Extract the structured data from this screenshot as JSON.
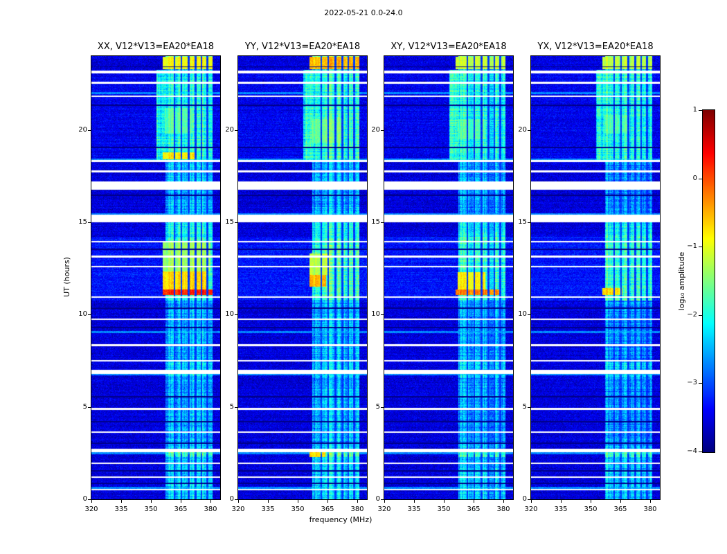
{
  "figure": {
    "title": "2022-05-21 0.0-24.0",
    "xlabel": "frequency (MHz)",
    "ylabel": "UT (hours)",
    "colorbar_label": "log₁₀ amplitude"
  },
  "chart_data": {
    "type": "heatmap",
    "title": "2022-05-21 0.0-24.0",
    "colormap": "jet",
    "x_axis": {
      "label": "frequency (MHz)",
      "range": [
        320,
        385
      ],
      "ticks": [
        "320",
        "335",
        "350",
        "365",
        "380"
      ]
    },
    "y_axis": {
      "label": "UT (hours)",
      "range": [
        0,
        24
      ],
      "ticks": [
        "0",
        "5",
        "10",
        "15",
        "20"
      ]
    },
    "colorbar": {
      "label": "log₁₀ amplitude",
      "range": [
        -4,
        1
      ],
      "ticks": [
        "1",
        "0",
        "−1",
        "−2",
        "−3",
        "−4"
      ]
    },
    "background_level": -3.55,
    "rfi_band": {
      "f0": 357.5,
      "f1": 381.2
    },
    "bg_windows": [
      {
        "t0": 10.75,
        "t1": 14.2,
        "level": -3.3
      },
      {
        "t0": 18.35,
        "t1": 23.3,
        "level": -3.45
      }
    ],
    "band_windows": [
      {
        "t0": 10.75,
        "t1": 14.2,
        "level": -1.9
      },
      {
        "t0": 18.35,
        "t1": 23.25,
        "level": -2.0,
        "f0": 353
      },
      {
        "t0": 23.3,
        "t1": 24,
        "level": -1.6
      },
      {
        "t0": 0,
        "t1": 2.9,
        "level": -2.35
      },
      {
        "t0": 2.3,
        "t1": 2.55,
        "level": -1.8
      },
      {
        "t0": 6.6,
        "t1": 7.4,
        "level": -2.3
      },
      {
        "t0": 14.2,
        "t1": 15.0,
        "level": -2.1
      }
    ],
    "time_gaps": [
      [
        23.05,
        23.2
      ],
      [
        22.5,
        22.62
      ],
      [
        21.78,
        21.86
      ],
      [
        18.25,
        18.38
      ],
      [
        17.7,
        17.8
      ],
      [
        16.75,
        17.2
      ],
      [
        15.0,
        15.42
      ],
      [
        13.9,
        14.0
      ],
      [
        13.1,
        13.2
      ],
      [
        12.55,
        12.63
      ],
      [
        10.9,
        11.0
      ],
      [
        9.7,
        9.8
      ],
      [
        8.3,
        8.4
      ],
      [
        7.45,
        7.53
      ],
      [
        6.8,
        7.0
      ],
      [
        4.85,
        4.95
      ],
      [
        3.6,
        3.68
      ],
      [
        2.55,
        2.72
      ],
      [
        1.9,
        1.97
      ],
      [
        1.15,
        1.22
      ],
      [
        0.5,
        0.57
      ]
    ],
    "dark_rows": [
      23.42,
      21.35,
      19.05,
      16.45,
      13.55,
      10.35,
      9.3,
      5.55,
      4.2,
      3.05,
      1.55,
      0.85
    ],
    "bright_rows": [
      22.0,
      18.42,
      15.45,
      9.05,
      6.76,
      2.5,
      0.62
    ],
    "dark_channels": [
      362,
      365.5,
      369,
      372.5,
      375.5,
      378.5
    ],
    "panels": [
      {
        "title": "XX, V12*V13=EA20*EA18",
        "band_level": -2.5,
        "hotspots": [
          {
            "t0": 11.05,
            "t1": 11.35,
            "f0": 356,
            "f1": 381,
            "level": 0.2
          },
          {
            "t0": 11.35,
            "t1": 12.35,
            "f0": 356,
            "f1": 379,
            "level": -0.7
          },
          {
            "t0": 12.35,
            "t1": 13.9,
            "f0": 356,
            "f1": 380,
            "level": -1.35
          },
          {
            "t0": 18.42,
            "t1": 18.8,
            "f0": 356,
            "f1": 373,
            "level": -0.8
          },
          {
            "t0": 19.8,
            "t1": 21.2,
            "f0": 357,
            "f1": 371,
            "level": -1.7
          },
          {
            "t0": 23.3,
            "t1": 23.97,
            "f0": 356,
            "f1": 381,
            "level": -0.9
          }
        ]
      },
      {
        "title": "YY, V12*V13=EA20*EA18",
        "band_level": -2.5,
        "hotspots": [
          {
            "t0": 11.5,
            "t1": 12.15,
            "f0": 356,
            "f1": 364.5,
            "level": -0.5
          },
          {
            "t0": 12.15,
            "t1": 13.3,
            "f0": 356,
            "f1": 366,
            "level": -1.2
          },
          {
            "t0": 2.3,
            "t1": 2.55,
            "f0": 356,
            "f1": 364,
            "level": -0.7
          },
          {
            "t0": 19.3,
            "t1": 20.6,
            "f0": 357,
            "f1": 372,
            "level": -1.6
          },
          {
            "t0": 23.3,
            "t1": 23.97,
            "f0": 356,
            "f1": 381,
            "level": -0.55
          }
        ]
      },
      {
        "title": "XY, V12*V13=EA20*EA18",
        "band_level": -2.55,
        "hotspots": [
          {
            "t0": 11.05,
            "t1": 11.35,
            "f0": 356,
            "f1": 379,
            "level": -0.25
          },
          {
            "t0": 11.35,
            "t1": 12.3,
            "f0": 357,
            "f1": 371,
            "level": -0.85
          },
          {
            "t0": 19.5,
            "t1": 20.6,
            "f0": 357,
            "f1": 371,
            "level": -1.75
          },
          {
            "t0": 23.3,
            "t1": 23.97,
            "f0": 356,
            "f1": 381,
            "level": -1.15
          }
        ]
      },
      {
        "title": "YX, V12*V13=EA20*EA18",
        "band_level": -2.65,
        "hotspots": [
          {
            "t0": 11.05,
            "t1": 11.45,
            "f0": 356,
            "f1": 366,
            "level": -0.7
          },
          {
            "t0": 19.8,
            "t1": 20.8,
            "f0": 357,
            "f1": 370,
            "level": -1.75
          },
          {
            "t0": 23.3,
            "t1": 23.97,
            "f0": 356,
            "f1": 381,
            "level": -1.2
          }
        ]
      }
    ]
  }
}
